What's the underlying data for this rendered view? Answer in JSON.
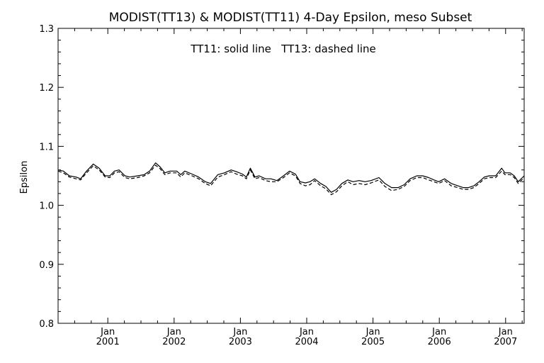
{
  "chart_data": {
    "type": "line",
    "title": "MODIST(TT13) & MODIST(TT11) 4-Day Epsilon, meso Subset",
    "annotation": "TT11: solid line   TT13: dashed line",
    "xlabel": "",
    "ylabel": "Epsilon",
    "ylim": [
      0.8,
      1.3
    ],
    "xlim": [
      2000.25,
      2007.28
    ],
    "yticks": [
      {
        "value": 0.8,
        "label": "0.8"
      },
      {
        "value": 0.9,
        "label": "0.9"
      },
      {
        "value": 1.0,
        "label": "1.0"
      },
      {
        "value": 1.1,
        "label": "1.1"
      },
      {
        "value": 1.2,
        "label": "1.2"
      },
      {
        "value": 1.3,
        "label": "1.3"
      }
    ],
    "xticks": [
      {
        "value": 2001.0,
        "month": "Jan",
        "year": "2001"
      },
      {
        "value": 2002.0,
        "month": "Jan",
        "year": "2002"
      },
      {
        "value": 2003.0,
        "month": "Jan",
        "year": "2003"
      },
      {
        "value": 2004.0,
        "month": "Jan",
        "year": "2004"
      },
      {
        "value": 2005.0,
        "month": "Jan",
        "year": "2005"
      },
      {
        "value": 2006.0,
        "month": "Jan",
        "year": "2006"
      },
      {
        "value": 2007.0,
        "month": "Jan",
        "year": "2007"
      }
    ],
    "grid": false,
    "series": [
      {
        "name": "TT11",
        "style": "solid",
        "color": "#000000",
        "points": [
          [
            2000.25,
            1.06
          ],
          [
            2000.33,
            1.058
          ],
          [
            2000.42,
            1.05
          ],
          [
            2000.52,
            1.048
          ],
          [
            2000.59,
            1.045
          ],
          [
            2000.68,
            1.058
          ],
          [
            2000.78,
            1.07
          ],
          [
            2000.87,
            1.063
          ],
          [
            2000.96,
            1.05
          ],
          [
            2001.03,
            1.05
          ],
          [
            2001.1,
            1.058
          ],
          [
            2001.17,
            1.06
          ],
          [
            2001.26,
            1.05
          ],
          [
            2001.33,
            1.048
          ],
          [
            2001.45,
            1.05
          ],
          [
            2001.55,
            1.052
          ],
          [
            2001.63,
            1.058
          ],
          [
            2001.72,
            1.072
          ],
          [
            2001.79,
            1.065
          ],
          [
            2001.86,
            1.055
          ],
          [
            2001.94,
            1.058
          ],
          [
            2002.04,
            1.058
          ],
          [
            2002.1,
            1.052
          ],
          [
            2002.16,
            1.058
          ],
          [
            2002.27,
            1.053
          ],
          [
            2002.37,
            1.048
          ],
          [
            2002.47,
            1.04
          ],
          [
            2002.55,
            1.037
          ],
          [
            2002.66,
            1.052
          ],
          [
            2002.76,
            1.055
          ],
          [
            2002.86,
            1.06
          ],
          [
            2002.94,
            1.057
          ],
          [
            2003.03,
            1.053
          ],
          [
            2003.09,
            1.048
          ],
          [
            2003.15,
            1.063
          ],
          [
            2003.22,
            1.048
          ],
          [
            2003.28,
            1.05
          ],
          [
            2003.38,
            1.045
          ],
          [
            2003.46,
            1.045
          ],
          [
            2003.55,
            1.042
          ],
          [
            2003.65,
            1.05
          ],
          [
            2003.74,
            1.058
          ],
          [
            2003.83,
            1.053
          ],
          [
            2003.9,
            1.04
          ],
          [
            2003.98,
            1.038
          ],
          [
            2004.05,
            1.04
          ],
          [
            2004.12,
            1.045
          ],
          [
            2004.21,
            1.037
          ],
          [
            2004.29,
            1.032
          ],
          [
            2004.37,
            1.022
          ],
          [
            2004.45,
            1.027
          ],
          [
            2004.53,
            1.037
          ],
          [
            2004.62,
            1.043
          ],
          [
            2004.7,
            1.04
          ],
          [
            2004.79,
            1.042
          ],
          [
            2004.88,
            1.04
          ],
          [
            2004.97,
            1.042
          ],
          [
            2005.09,
            1.047
          ],
          [
            2005.18,
            1.037
          ],
          [
            2005.28,
            1.03
          ],
          [
            2005.38,
            1.03
          ],
          [
            2005.47,
            1.035
          ],
          [
            2005.56,
            1.045
          ],
          [
            2005.66,
            1.05
          ],
          [
            2005.75,
            1.05
          ],
          [
            2005.84,
            1.047
          ],
          [
            2005.92,
            1.043
          ],
          [
            2005.99,
            1.04
          ],
          [
            2006.08,
            1.045
          ],
          [
            2006.18,
            1.037
          ],
          [
            2006.28,
            1.033
          ],
          [
            2006.36,
            1.03
          ],
          [
            2006.44,
            1.03
          ],
          [
            2006.52,
            1.033
          ],
          [
            2006.6,
            1.04
          ],
          [
            2006.68,
            1.048
          ],
          [
            2006.75,
            1.05
          ],
          [
            2006.85,
            1.05
          ],
          [
            2006.94,
            1.063
          ],
          [
            2006.99,
            1.055
          ],
          [
            2007.07,
            1.055
          ],
          [
            2007.13,
            1.05
          ],
          [
            2007.19,
            1.04
          ],
          [
            2007.28,
            1.05
          ]
        ]
      },
      {
        "name": "TT13",
        "style": "dashed",
        "color": "#000000",
        "points": [
          [
            2000.25,
            1.058
          ],
          [
            2000.33,
            1.055
          ],
          [
            2000.42,
            1.048
          ],
          [
            2000.52,
            1.045
          ],
          [
            2000.59,
            1.043
          ],
          [
            2000.68,
            1.055
          ],
          [
            2000.78,
            1.067
          ],
          [
            2000.87,
            1.06
          ],
          [
            2000.96,
            1.048
          ],
          [
            2001.03,
            1.047
          ],
          [
            2001.1,
            1.055
          ],
          [
            2001.17,
            1.057
          ],
          [
            2001.26,
            1.047
          ],
          [
            2001.33,
            1.045
          ],
          [
            2001.45,
            1.047
          ],
          [
            2001.55,
            1.05
          ],
          [
            2001.63,
            1.055
          ],
          [
            2001.72,
            1.068
          ],
          [
            2001.79,
            1.062
          ],
          [
            2001.86,
            1.052
          ],
          [
            2001.94,
            1.055
          ],
          [
            2002.04,
            1.055
          ],
          [
            2002.1,
            1.048
          ],
          [
            2002.16,
            1.055
          ],
          [
            2002.27,
            1.05
          ],
          [
            2002.37,
            1.045
          ],
          [
            2002.47,
            1.037
          ],
          [
            2002.55,
            1.033
          ],
          [
            2002.66,
            1.048
          ],
          [
            2002.76,
            1.052
          ],
          [
            2002.86,
            1.057
          ],
          [
            2002.94,
            1.053
          ],
          [
            2003.03,
            1.05
          ],
          [
            2003.09,
            1.045
          ],
          [
            2003.15,
            1.06
          ],
          [
            2003.22,
            1.045
          ],
          [
            2003.28,
            1.047
          ],
          [
            2003.38,
            1.042
          ],
          [
            2003.46,
            1.04
          ],
          [
            2003.55,
            1.04
          ],
          [
            2003.65,
            1.047
          ],
          [
            2003.74,
            1.055
          ],
          [
            2003.83,
            1.05
          ],
          [
            2003.9,
            1.037
          ],
          [
            2003.98,
            1.033
          ],
          [
            2004.05,
            1.035
          ],
          [
            2004.12,
            1.042
          ],
          [
            2004.21,
            1.033
          ],
          [
            2004.29,
            1.028
          ],
          [
            2004.37,
            1.018
          ],
          [
            2004.45,
            1.023
          ],
          [
            2004.53,
            1.033
          ],
          [
            2004.62,
            1.04
          ],
          [
            2004.7,
            1.035
          ],
          [
            2004.79,
            1.037
          ],
          [
            2004.88,
            1.035
          ],
          [
            2004.97,
            1.038
          ],
          [
            2005.09,
            1.043
          ],
          [
            2005.18,
            1.032
          ],
          [
            2005.28,
            1.025
          ],
          [
            2005.38,
            1.027
          ],
          [
            2005.47,
            1.032
          ],
          [
            2005.56,
            1.042
          ],
          [
            2005.66,
            1.047
          ],
          [
            2005.75,
            1.047
          ],
          [
            2005.84,
            1.043
          ],
          [
            2005.92,
            1.04
          ],
          [
            2005.99,
            1.037
          ],
          [
            2006.08,
            1.042
          ],
          [
            2006.18,
            1.033
          ],
          [
            2006.28,
            1.03
          ],
          [
            2006.36,
            1.027
          ],
          [
            2006.44,
            1.027
          ],
          [
            2006.52,
            1.03
          ],
          [
            2006.6,
            1.037
          ],
          [
            2006.68,
            1.045
          ],
          [
            2006.75,
            1.047
          ],
          [
            2006.85,
            1.047
          ],
          [
            2006.94,
            1.058
          ],
          [
            2006.99,
            1.052
          ],
          [
            2007.07,
            1.052
          ],
          [
            2007.13,
            1.047
          ],
          [
            2007.19,
            1.037
          ],
          [
            2007.28,
            1.047
          ]
        ]
      }
    ]
  }
}
